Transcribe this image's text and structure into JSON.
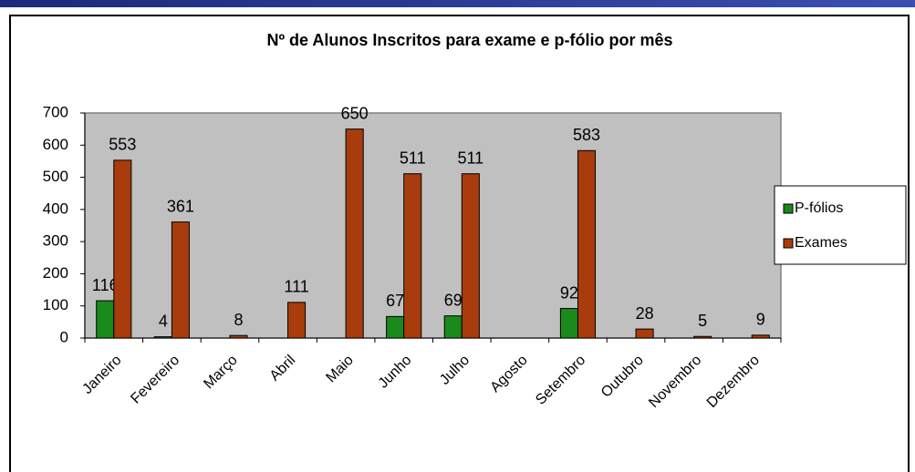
{
  "chart_data": {
    "type": "bar",
    "title": "Nº de Alunos Inscritos para exame e p-fólio por mês",
    "categories": [
      "Janeiro",
      "Fevereiro",
      "Março",
      "Abril",
      "Maio",
      "Junho",
      "Julho",
      "Agosto",
      "Setembro",
      "Outubro",
      "Novembro",
      "Dezembro"
    ],
    "series": [
      {
        "name": "P-fólios",
        "color": "#1a8a1a",
        "values": [
          116,
          4,
          null,
          null,
          null,
          67,
          69,
          null,
          92,
          null,
          null,
          null
        ]
      },
      {
        "name": "Exames",
        "color": "#a83c0c",
        "values": [
          553,
          361,
          8,
          111,
          650,
          511,
          511,
          null,
          583,
          28,
          5,
          9
        ]
      }
    ],
    "ylim": [
      0,
      700
    ],
    "yticks": [
      0,
      100,
      200,
      300,
      400,
      500,
      600,
      700
    ],
    "plot_background": "#c0c0c0",
    "legend": "right"
  }
}
